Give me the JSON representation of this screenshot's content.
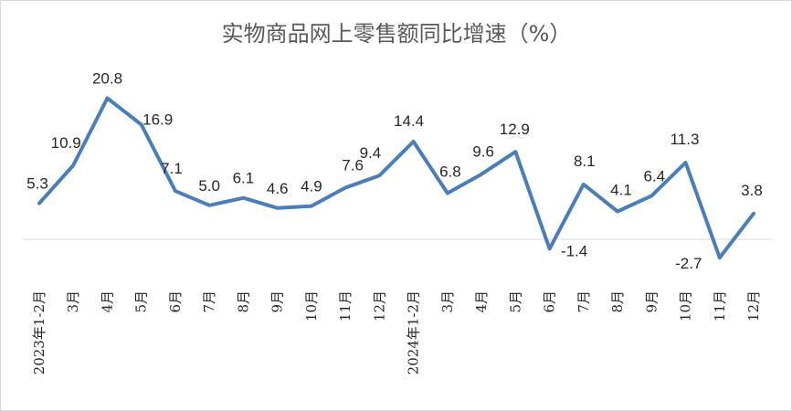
{
  "chart_data": {
    "type": "line",
    "title": "实物商品网上零售额同比增速（%）",
    "xlabel": "",
    "ylabel": "",
    "categories": [
      "2023年1-2月",
      "3月",
      "4月",
      "5月",
      "6月",
      "7月",
      "8月",
      "9月",
      "10月",
      "11月",
      "12月",
      "2024年1-2月",
      "3月",
      "4月",
      "5月",
      "6月",
      "7月",
      "8月",
      "9月",
      "10月",
      "11月",
      "12月"
    ],
    "series": [
      {
        "values": [
          5.3,
          10.9,
          20.8,
          16.9,
          7.1,
          5.0,
          6.1,
          4.6,
          4.9,
          7.6,
          9.4,
          14.4,
          6.8,
          9.6,
          12.9,
          -1.4,
          8.1,
          4.1,
          6.4,
          11.3,
          -2.7,
          3.8
        ],
        "labels": [
          "5.3",
          "10.9",
          "20.8",
          "16.9",
          "7.1",
          "5.0",
          "6.1",
          "4.6",
          "4.9",
          "7.6",
          "9.4",
          "14.4",
          "6.8",
          "9.6",
          "12.9",
          "-1.4",
          "8.1",
          "4.1",
          "6.4",
          "11.3",
          "-2.7",
          "3.8"
        ]
      }
    ],
    "ylim": [
      -4,
      24
    ],
    "grid": false,
    "legend": "none",
    "line_color": "#4a7ebb",
    "axis_color": "#d9d9d9"
  }
}
